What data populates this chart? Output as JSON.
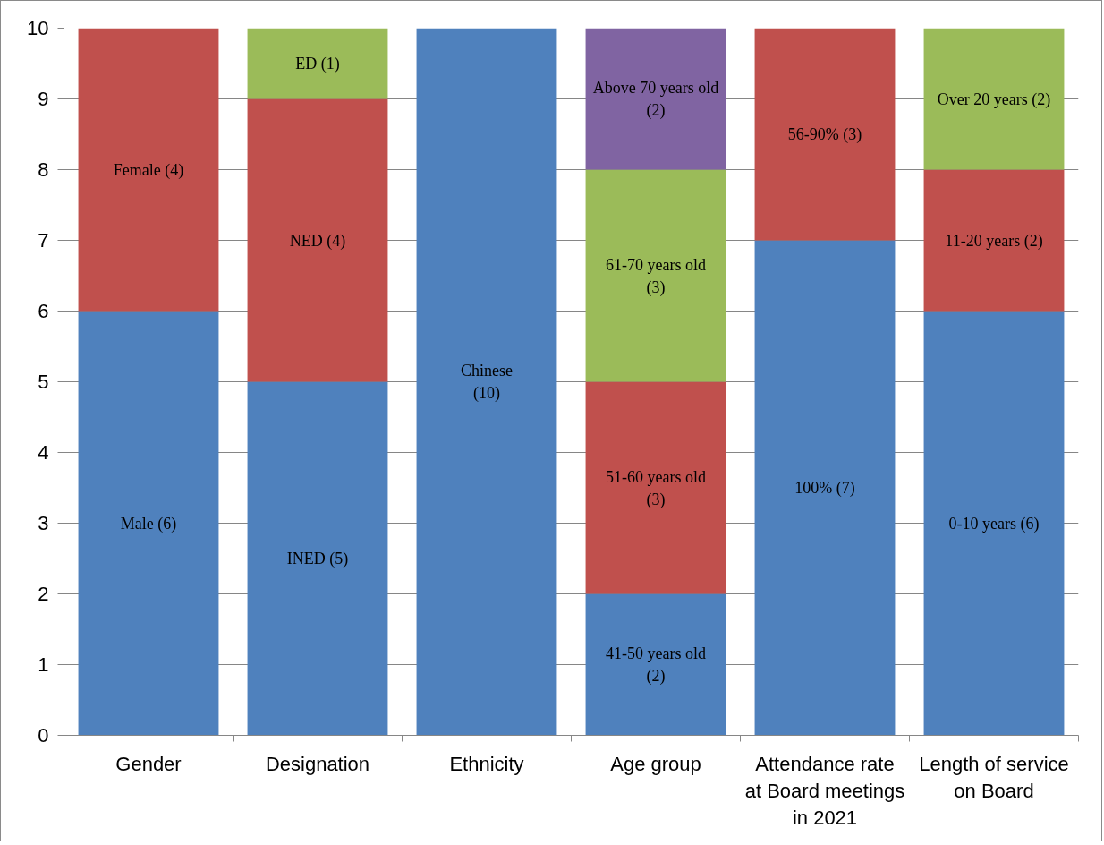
{
  "chart_data": {
    "type": "bar",
    "stacked": true,
    "categories": [
      "Gender",
      "Designation",
      "Ethnicity",
      "Age group",
      "Attendance rate\nat Board meetings\nin 2021",
      "Length of service\non Board"
    ],
    "ylim": [
      0,
      10
    ],
    "yticks": [
      0,
      1,
      2,
      3,
      4,
      5,
      6,
      7,
      8,
      9,
      10
    ],
    "grid": "y",
    "series": [
      {
        "color": "#4f81bd",
        "values": [
          6,
          5,
          10,
          2,
          7,
          6
        ],
        "value_labels": [
          "Male (6)",
          "INED (5)",
          "Chinese\n(10)",
          "41-50 years old\n(2)",
          "100% (7)",
          "0-10 years (6)"
        ]
      },
      {
        "color": "#c0504d",
        "values": [
          4,
          4,
          null,
          3,
          3,
          2
        ],
        "value_labels": [
          "Female (4)",
          "NED (4)",
          null,
          "51-60 years old\n(3)",
          "56-90% (3)",
          "11-20 years (2)"
        ]
      },
      {
        "color": "#9bbb59",
        "values": [
          null,
          1,
          null,
          3,
          null,
          2
        ],
        "value_labels": [
          null,
          "ED (1)",
          null,
          "61-70 years old\n(3)",
          null,
          "Over 20 years (2)"
        ]
      },
      {
        "color": "#8064a2",
        "values": [
          null,
          null,
          null,
          2,
          null,
          null
        ],
        "value_labels": [
          null,
          null,
          null,
          "Above 70 years old\n(2)",
          null,
          null
        ]
      }
    ]
  }
}
